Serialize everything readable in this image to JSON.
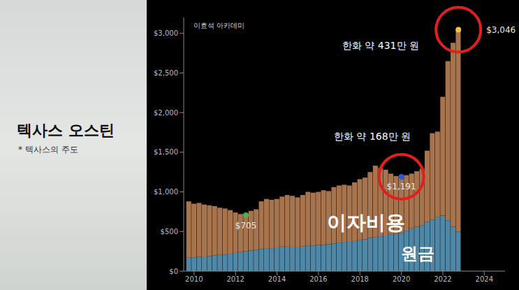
{
  "side_panel": {
    "title": "텍사스 오스틴",
    "subtitle": "* 텍사스의 주도"
  },
  "chart_data": {
    "type": "bar",
    "stacked": true,
    "grid": false,
    "x": [
      2009.75,
      2010.0,
      2010.25,
      2010.5,
      2010.75,
      2011.0,
      2011.25,
      2011.5,
      2011.75,
      2012.0,
      2012.25,
      2012.5,
      2012.75,
      2013.0,
      2013.25,
      2013.5,
      2013.75,
      2014.0,
      2014.25,
      2014.5,
      2014.75,
      2015.0,
      2015.25,
      2015.5,
      2015.75,
      2016.0,
      2016.25,
      2016.5,
      2016.75,
      2017.0,
      2017.25,
      2017.5,
      2017.75,
      2018.0,
      2018.25,
      2018.5,
      2018.75,
      2019.0,
      2019.25,
      2019.5,
      2019.75,
      2020.0,
      2020.25,
      2020.5,
      2020.75,
      2021.0,
      2021.25,
      2021.5,
      2021.75,
      2022.0,
      2022.25,
      2022.5,
      2022.75
    ],
    "series": [
      {
        "name": "원금",
        "color": "#4f87a6",
        "values": [
          170,
          175,
          180,
          185,
          190,
          200,
          205,
          210,
          220,
          230,
          240,
          250,
          260,
          270,
          280,
          290,
          290,
          300,
          310,
          310,
          300,
          300,
          310,
          320,
          320,
          330,
          330,
          340,
          350,
          360,
          370,
          370,
          380,
          390,
          400,
          420,
          430,
          440,
          450,
          460,
          470,
          480,
          510,
          540,
          560,
          580,
          620,
          650,
          680,
          700,
          640,
          560,
          500
        ]
      },
      {
        "name": "이자비용",
        "color": "#a8744e",
        "values": [
          710,
          675,
          680,
          655,
          640,
          620,
          595,
          580,
          550,
          510,
          480,
          455,
          500,
          510,
          600,
          620,
          610,
          610,
          630,
          650,
          650,
          630,
          650,
          680,
          670,
          670,
          690,
          670,
          710,
          720,
          720,
          710,
          740,
          770,
          780,
          830,
          900,
          860,
          830,
          770,
          730,
          711,
          700,
          690,
          700,
          710,
          900,
          1090,
          1080,
          1500,
          2010,
          2320,
          2546
        ]
      }
    ],
    "xlim": [
      2009.5,
      2025
    ],
    "xticks": [
      2010,
      2012,
      2014,
      2016,
      2018,
      2020,
      2022,
      2024
    ],
    "ylim": [
      0,
      3200
    ],
    "yticks": [
      {
        "value": 0,
        "label": "$0"
      },
      {
        "value": 500,
        "label": "$500"
      },
      {
        "value": 1000,
        "label": "$1,000"
      },
      {
        "value": 1500,
        "label": "$1,500"
      },
      {
        "value": 2000,
        "label": "$2,000"
      },
      {
        "value": 2500,
        "label": "$2,500"
      },
      {
        "value": 3000,
        "label": "$3,000"
      }
    ],
    "point_labels": [
      {
        "x": 2012.5,
        "y": 705,
        "label": "$705",
        "color": "#4caf50",
        "circled": false
      },
      {
        "x": 2020.0,
        "y": 1191,
        "label": "$1,191",
        "color": "#2f55d4",
        "circled": true
      },
      {
        "x": 2022.75,
        "y": 3046,
        "label": "$3,046",
        "color": "#f0c040",
        "circled": true
      }
    ],
    "annotations": [
      {
        "text": "한화 약 168만 원",
        "x": 2018.6,
        "y": 1700
      },
      {
        "text": "한화 약 431만 원",
        "x": 2019.0,
        "y": 2850
      },
      {
        "text": "이자비용",
        "x": 2018.3,
        "y": 620
      },
      {
        "text": "원금",
        "x": 2020.8,
        "y": 225
      },
      {
        "text": "이효석 아카데미",
        "x": 2011.2,
        "y": 3100
      }
    ]
  }
}
